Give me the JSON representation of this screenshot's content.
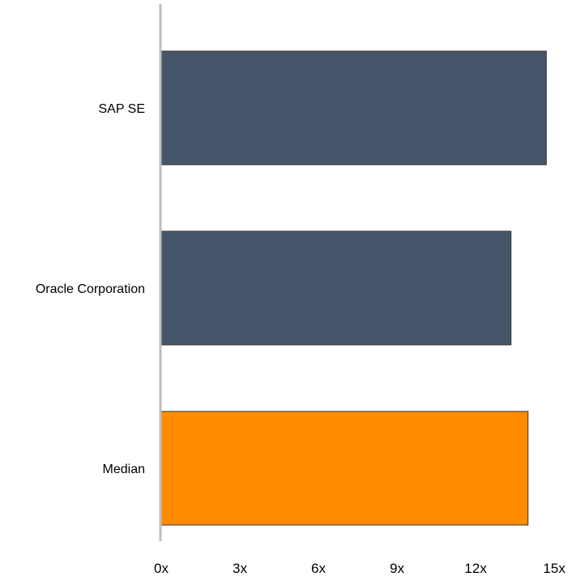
{
  "chart_data": {
    "type": "bar",
    "orientation": "horizontal",
    "categories": [
      "SAP SE",
      "Oracle Corporation",
      "Median"
    ],
    "values": [
      14.7,
      13.35,
      14.0
    ],
    "xlim": [
      0,
      15
    ],
    "xticks": [
      0,
      3,
      6,
      9,
      12,
      15
    ],
    "tick_labels": [
      "0x",
      "3x",
      "6x",
      "9x",
      "12x",
      "15x"
    ],
    "bar_colors": [
      "#465569",
      "#465569",
      "#ff8c00"
    ],
    "bar_outline_color": "#333333",
    "axis_color": "#bfbfbf",
    "grid": false,
    "legend": "none",
    "title": "",
    "xlabel": "",
    "ylabel": ""
  }
}
